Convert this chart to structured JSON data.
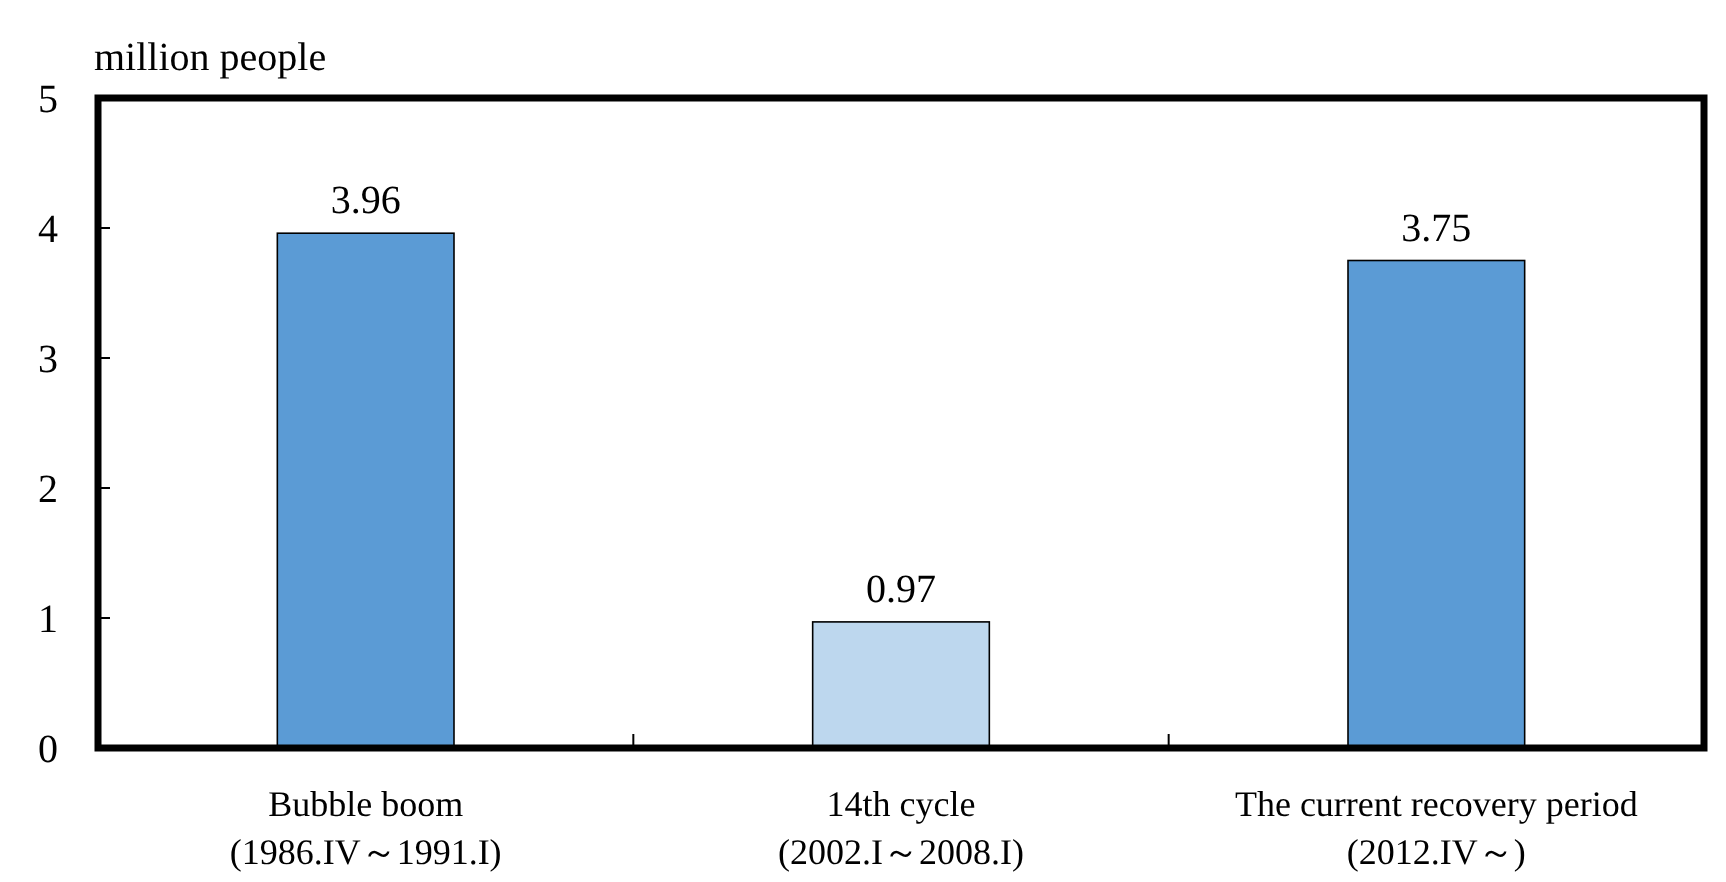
{
  "chart_data": {
    "type": "bar",
    "ylabel": "million people",
    "categories": [
      "Bubble boom\n(1986.IV～1991.I)",
      "14th cycle\n(2002.I～2008.I)",
      "The current recovery period\n(2012.IV～)"
    ],
    "values": [
      3.96,
      0.97,
      3.75
    ],
    "colors": [
      "#5b9bd5",
      "#bdd7ee",
      "#5b9bd5"
    ],
    "ylim": [
      0,
      5
    ],
    "yticks": [
      0,
      1,
      2,
      3,
      4,
      5
    ],
    "data_labels": true
  }
}
